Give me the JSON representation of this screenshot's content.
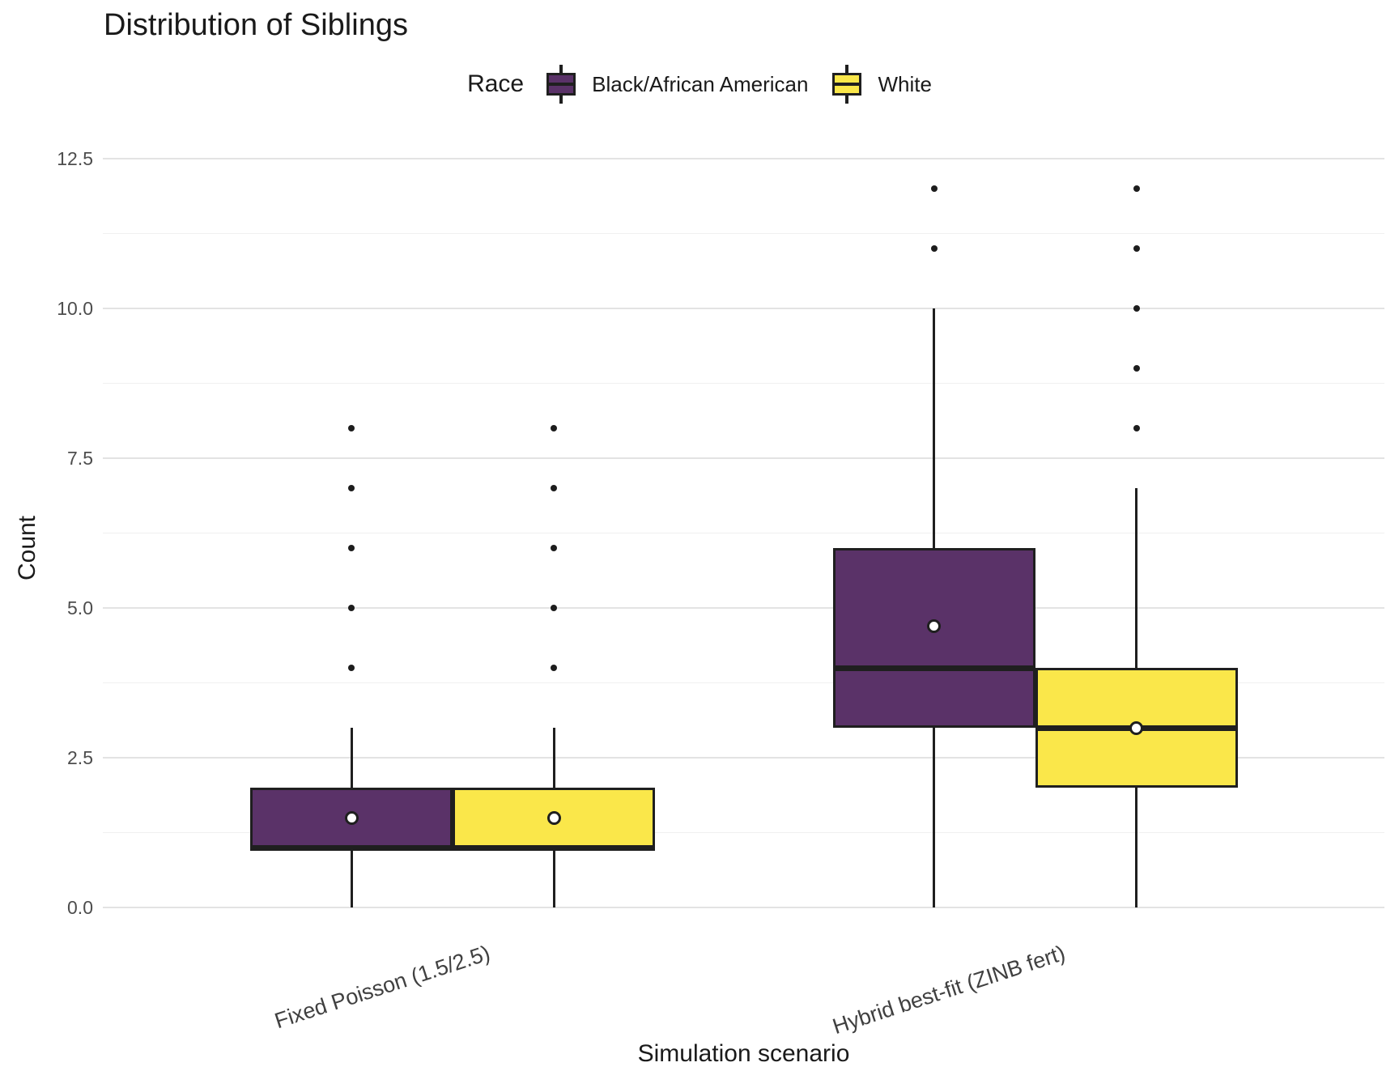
{
  "chart_data": {
    "type": "boxplot",
    "title": "Distribution of Siblings",
    "xlabel": "Simulation scenario",
    "ylabel": "Count",
    "grid": "horizontal-only",
    "legend": {
      "title": "Race",
      "position": "top-center",
      "entries": [
        {
          "label": "Black/African American",
          "fill": "#5a3268"
        },
        {
          "label": "White",
          "fill": "#fae74a"
        }
      ]
    },
    "categories": [
      "Fixed Poisson (1.5/2.5)",
      "Hybrid best-fit (ZINB fert)"
    ],
    "y_axis": {
      "ticks": [
        0.0,
        2.5,
        5.0,
        7.5,
        10.0,
        12.5
      ],
      "tick_labels": [
        "0.0",
        "2.5",
        "5.0",
        "7.5",
        "10.0",
        "12.5"
      ],
      "minor_ticks": [
        1.25,
        3.75,
        6.25,
        8.75,
        11.25
      ],
      "limits": [
        -0.6,
        12.6
      ]
    },
    "series": [
      {
        "name": "Black/African American",
        "fill": "#5a3268",
        "boxes": [
          {
            "category": "Fixed Poisson (1.5/2.5)",
            "q1": 1,
            "median": 1,
            "q3": 2,
            "whisker_low": 0,
            "whisker_high": 3,
            "mean": 1.5,
            "outliers": [
              4,
              5,
              6,
              7,
              8
            ]
          },
          {
            "category": "Hybrid best-fit (ZINB fert)",
            "q1": 3,
            "median": 4,
            "q3": 6,
            "whisker_low": 0,
            "whisker_high": 10,
            "mean": 4.7,
            "outliers": [
              11,
              12
            ]
          }
        ]
      },
      {
        "name": "White",
        "fill": "#fae74a",
        "boxes": [
          {
            "category": "Fixed Poisson (1.5/2.5)",
            "q1": 1,
            "median": 1,
            "q3": 2,
            "whisker_low": 0,
            "whisker_high": 3,
            "mean": 1.5,
            "outliers": [
              4,
              5,
              6,
              7,
              8
            ]
          },
          {
            "category": "Hybrid best-fit (ZINB fert)",
            "q1": 2,
            "median": 3,
            "q3": 4,
            "whisker_low": 0,
            "whisker_high": 7,
            "mean": 3.0,
            "outliers": [
              8,
              9,
              10,
              11,
              12
            ]
          }
        ]
      }
    ]
  }
}
